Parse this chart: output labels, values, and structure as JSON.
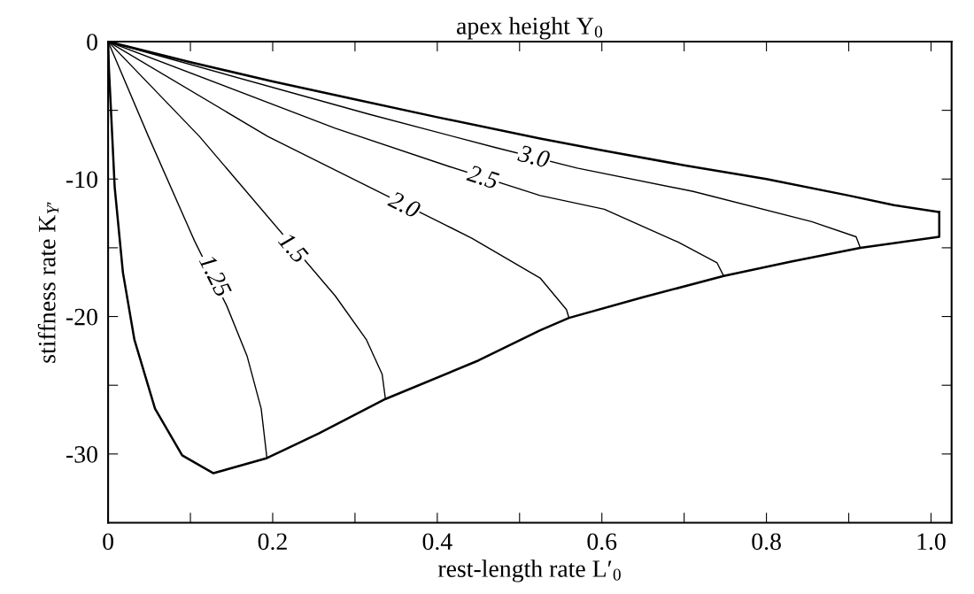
{
  "chart_data": {
    "type": "line",
    "title": "apex height Y$_{0}$",
    "xlabel": "rest-length rate L′$_{0}$",
    "ylabel": "stiffness rate K$_{Y′}$",
    "xlim": [
      0,
      1.025
    ],
    "ylim": [
      -35,
      0
    ],
    "xticks": [
      0,
      {
        "value": 0.1,
        "label": null
      },
      0.2,
      {
        "value": 0.3,
        "label": null
      },
      0.4,
      {
        "value": 0.5,
        "label": null
      },
      0.6,
      {
        "value": 0.7,
        "label": null
      },
      0.8,
      {
        "value": 0.9,
        "label": null
      },
      {
        "value": 1.0,
        "label": "1.0"
      }
    ],
    "yticks": [
      0,
      {
        "value": -5,
        "label": null
      },
      -10,
      {
        "value": -15,
        "label": null
      },
      -20,
      {
        "value": -25,
        "label": null
      },
      -30
    ],
    "grid": false,
    "marker": "none",
    "line_style": "solid",
    "annotations": [
      {
        "text": "1.25",
        "x": 0.128,
        "y": -17.1
      },
      {
        "text": "1.5",
        "x": 0.223,
        "y": -15.1
      },
      {
        "text": "2.0",
        "x": 0.359,
        "y": -12.0
      },
      {
        "text": "2.5",
        "x": 0.455,
        "y": -10.0
      },
      {
        "text": "3.0",
        "x": 0.517,
        "y": -8.5
      }
    ],
    "series": [
      {
        "color": "#000000",
        "x": [
          0,
          0.1,
          0.2,
          0.3,
          0.4,
          0.525,
          0.6,
          0.7,
          0.8,
          0.9,
          0.955,
          1.01
        ],
        "values": [
          0,
          -1.5,
          -2.9,
          -4.2,
          -5.5,
          -7.05,
          -7.9,
          -9.0,
          -10.0,
          -11.2,
          -11.9,
          -12.4
        ]
      },
      {
        "color": "#000000",
        "x": [
          0,
          0.001,
          0.003,
          0.008,
          0.018,
          0.032,
          0.057,
          0.09,
          0.128,
          0.193,
          0.256,
          0.337,
          0.45,
          0.525,
          0.56,
          0.65,
          0.748,
          0.83,
          0.914,
          1.01,
          1.01
        ],
        "values": [
          0,
          -2.0,
          -4.4,
          -10.6,
          -16.8,
          -21.7,
          -26.7,
          -30.1,
          -31.4,
          -30.3,
          -28.5,
          -26.0,
          -23.2,
          -21.0,
          -20.1,
          -18.6,
          -17.05,
          -16.0,
          -15.0,
          -14.2,
          -12.4
        ]
      },
      {
        "color": "#000000",
        "x": [
          0,
          0.049,
          0.105,
          0.144,
          0.169,
          0.186,
          0.193
        ],
        "values": [
          0,
          -6.9,
          -14.5,
          -19.2,
          -22.9,
          -26.7,
          -30.3
        ]
      },
      {
        "color": "#000000",
        "x": [
          0,
          0.111,
          0.276,
          0.314,
          0.333,
          0.337
        ],
        "values": [
          0,
          -6.9,
          -18.5,
          -21.7,
          -24.2,
          -26.0
        ]
      },
      {
        "color": "#000000",
        "x": [
          0,
          0.194,
          0.442,
          0.525,
          0.557,
          0.56
        ],
        "values": [
          0,
          -6.9,
          -14.3,
          -17.2,
          -19.5,
          -20.1
        ]
      },
      {
        "color": "#000000",
        "x": [
          0,
          0.276,
          0.415,
          0.525,
          0.603,
          0.693,
          0.74,
          0.748
        ],
        "values": [
          0,
          -6.3,
          -9.1,
          -11.2,
          -12.2,
          -14.6,
          -16.1,
          -17.05
        ]
      },
      {
        "color": "#000000",
        "x": [
          0,
          0.318,
          0.47,
          0.57,
          0.711,
          0.855,
          0.909,
          0.914
        ],
        "values": [
          0,
          -5.3,
          -7.7,
          -9.2,
          -10.9,
          -13.1,
          -14.2,
          -15.0
        ]
      }
    ]
  }
}
